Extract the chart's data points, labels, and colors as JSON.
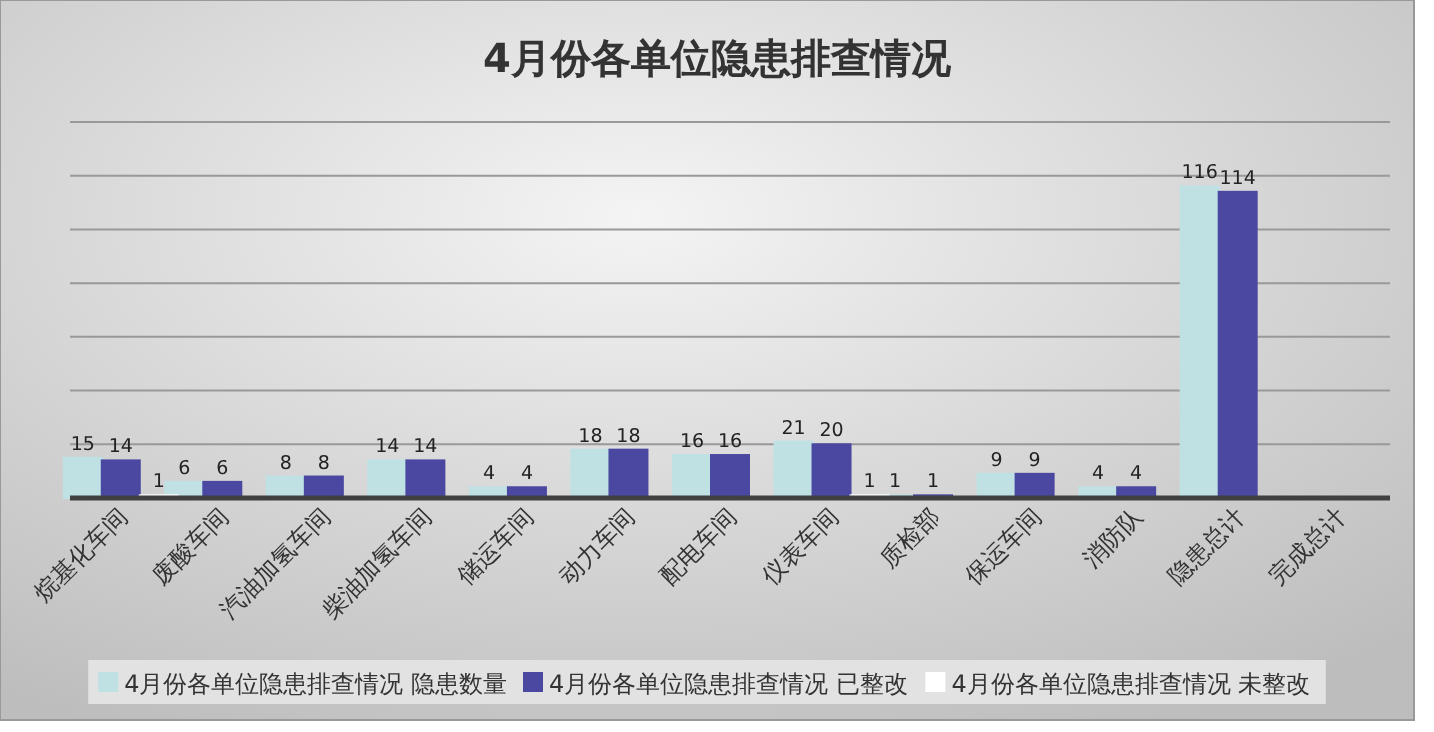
{
  "chart_data": {
    "type": "bar",
    "title": "4月份各单位隐患排查情况",
    "categories": [
      "烷基化车间",
      "废酸车间",
      "汽油加氢车间",
      "柴油加氢车间",
      "储运车间",
      "动力车间",
      "配电车间",
      "仪表车间",
      "质检部",
      "保运车间",
      "消防队",
      "隐患总计",
      "完成总计"
    ],
    "series": [
      {
        "name": "4月份各单位隐患排查情况 隐患数量",
        "color": "#bfe1e4",
        "values": [
          15,
          6,
          8,
          14,
          4,
          18,
          16,
          21,
          1,
          9,
          4,
          116,
          null
        ]
      },
      {
        "name": "4月份各单位隐患排查情况 已整改",
        "color": "#4b48a2",
        "values": [
          14,
          6,
          8,
          14,
          4,
          18,
          16,
          20,
          1,
          9,
          4,
          114,
          null
        ]
      },
      {
        "name": "4月份各单位隐患排查情况 未整改",
        "color": "#ffffff",
        "values": [
          1,
          null,
          null,
          null,
          null,
          null,
          null,
          1,
          null,
          null,
          null,
          null,
          null
        ]
      }
    ],
    "ylim": [
      0,
      140
    ],
    "yticks": [
      {
        "value": 0,
        "label": null
      },
      {
        "value": 20,
        "label": null
      },
      {
        "value": 40,
        "label": null
      },
      {
        "value": 60,
        "label": null
      },
      {
        "value": 80,
        "label": null
      },
      {
        "value": 100,
        "label": null
      },
      {
        "value": 120,
        "label": null
      },
      {
        "value": 140,
        "label": null
      }
    ],
    "tick_labels": "x",
    "grid": "y",
    "legend": "bottom",
    "data_labels": true
  }
}
